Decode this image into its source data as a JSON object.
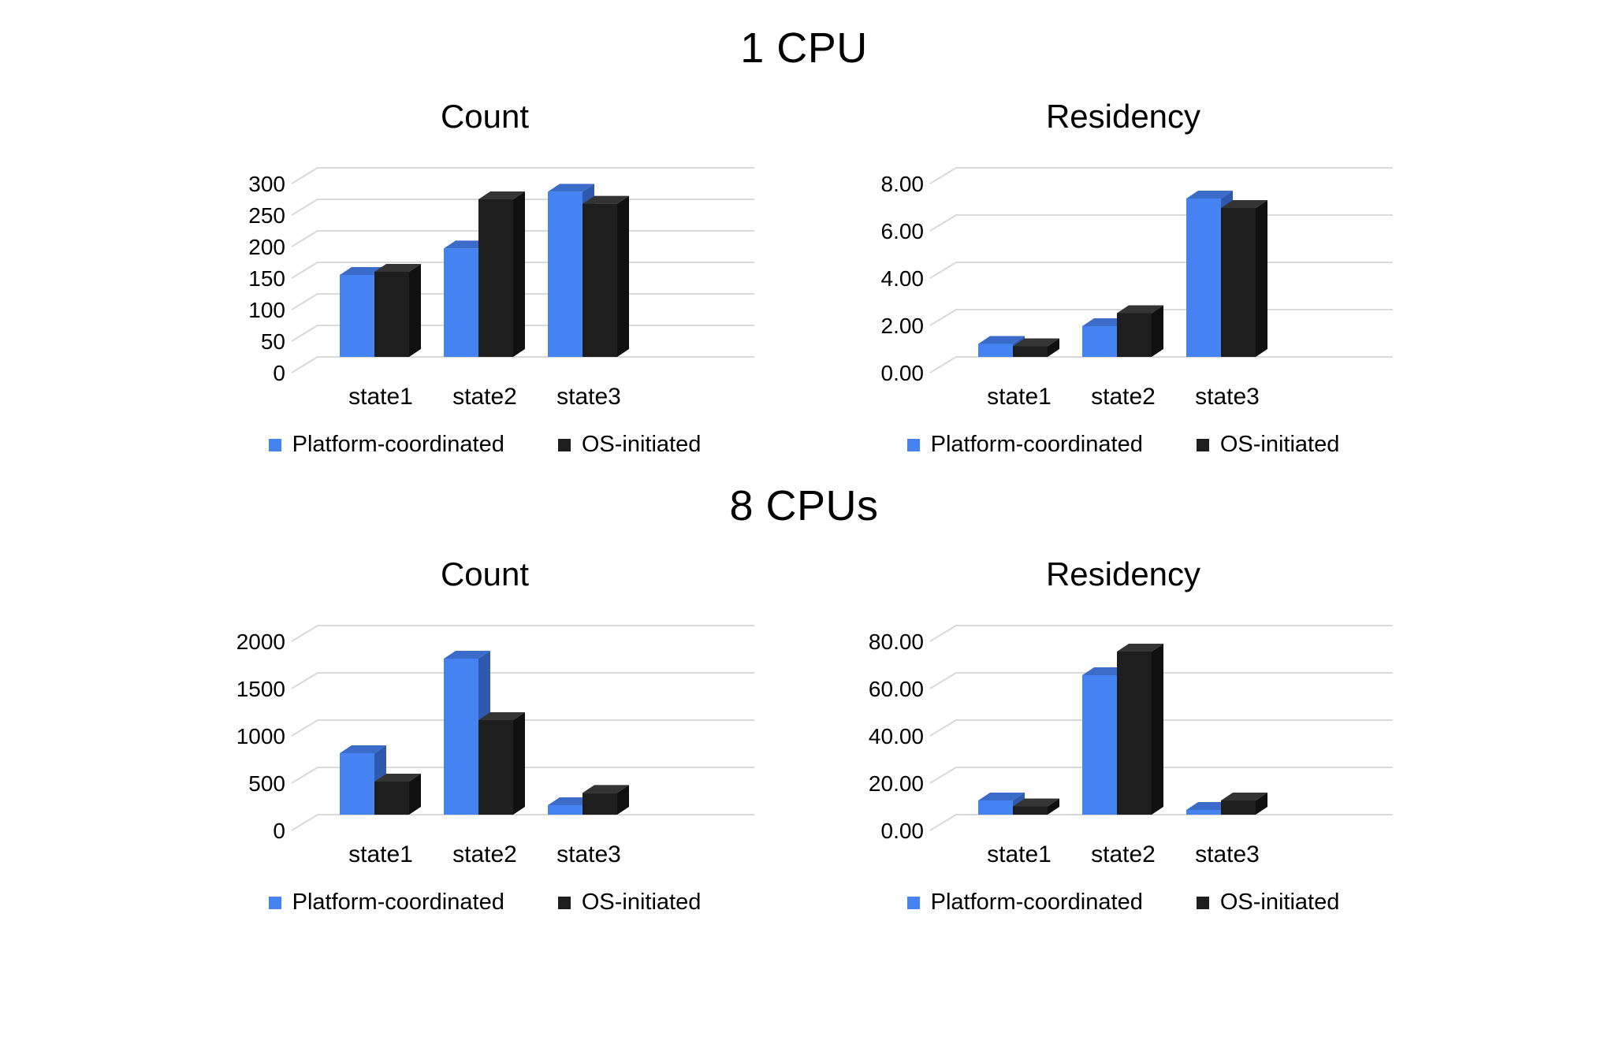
{
  "page": {
    "background": "#ffffff"
  },
  "sections": [
    {
      "title": "1 CPU"
    },
    {
      "title": "8 CPUs"
    }
  ],
  "legend": {
    "series": [
      {
        "label": "Platform-coordinated",
        "color": "#4583f2"
      },
      {
        "label": "OS-initiated",
        "color": "#1e1e1e"
      }
    ]
  },
  "colors": {
    "blue": {
      "front": "#4583f2",
      "top": "#3c6cca",
      "side": "#2e59ad"
    },
    "black": {
      "front": "#1e1e1e",
      "top": "#343434",
      "side": "#101010"
    },
    "grid": "#d9d9d9",
    "text": "#000000"
  },
  "chart_data": [
    {
      "type": "bar",
      "style": "3d-column",
      "title": "Count",
      "section": "1 CPU",
      "categories": [
        "state1",
        "state2",
        "state3"
      ],
      "series": [
        {
          "name": "Platform-coordinated",
          "values": [
            130,
            172,
            262
          ]
        },
        {
          "name": "OS-initiated",
          "values": [
            135,
            250,
            243
          ]
        }
      ],
      "ylim": [
        0,
        300
      ],
      "ytick_values": [
        0,
        50,
        100,
        150,
        200,
        250,
        300
      ],
      "ytick_labels": [
        "0",
        "50",
        "100",
        "150",
        "200",
        "250",
        "300"
      ],
      "grid": true,
      "legend_position": "bottom"
    },
    {
      "type": "bar",
      "style": "3d-column",
      "title": "Residency",
      "section": "1 CPU",
      "categories": [
        "state1",
        "state2",
        "state3"
      ],
      "series": [
        {
          "name": "Platform-coordinated",
          "values": [
            0.55,
            1.3,
            6.7
          ]
        },
        {
          "name": "OS-initiated",
          "values": [
            0.45,
            1.85,
            6.3
          ]
        }
      ],
      "ylim": [
        0,
        8
      ],
      "ytick_values": [
        0,
        2,
        4,
        6,
        8
      ],
      "ytick_labels": [
        "0.00",
        "2.00",
        "4.00",
        "6.00",
        "8.00"
      ],
      "grid": true,
      "legend_position": "bottom"
    },
    {
      "type": "bar",
      "style": "3d-column",
      "title": "Count",
      "section": "8 CPUs",
      "categories": [
        "state1",
        "state2",
        "state3"
      ],
      "series": [
        {
          "name": "Platform-coordinated",
          "values": [
            650,
            1650,
            100
          ]
        },
        {
          "name": "OS-initiated",
          "values": [
            350,
            1000,
            230
          ]
        }
      ],
      "ylim": [
        0,
        2000
      ],
      "ytick_values": [
        0,
        500,
        1000,
        1500,
        2000
      ],
      "ytick_labels": [
        "0",
        "500",
        "1000",
        "1500",
        "2000"
      ],
      "grid": true,
      "legend_position": "bottom"
    },
    {
      "type": "bar",
      "style": "3d-column",
      "title": "Residency",
      "section": "8 CPUs",
      "categories": [
        "state1",
        "state2",
        "state3"
      ],
      "series": [
        {
          "name": "Platform-coordinated",
          "values": [
            6,
            59,
            2
          ]
        },
        {
          "name": "OS-initiated",
          "values": [
            3.5,
            69,
            6
          ]
        }
      ],
      "ylim": [
        0,
        80
      ],
      "ytick_values": [
        0,
        20,
        40,
        60,
        80
      ],
      "ytick_labels": [
        "0.00",
        "20.00",
        "40.00",
        "60.00",
        "80.00"
      ],
      "grid": true,
      "legend_position": "bottom"
    }
  ]
}
